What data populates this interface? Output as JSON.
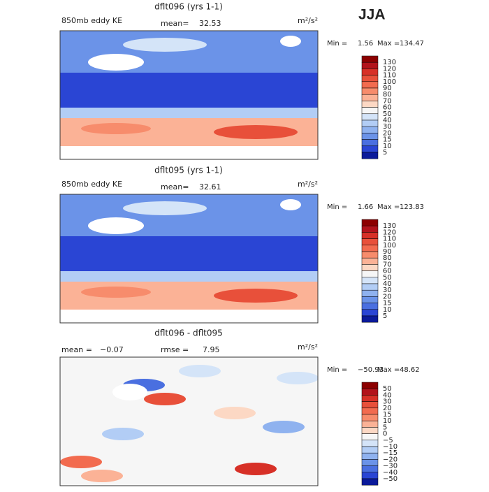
{
  "season": "JJA",
  "panels": [
    {
      "title": "dflt096 (yrs 1-1)",
      "variable": "850mb eddy KE",
      "mean_label": "mean=",
      "mean": "32.53",
      "units": "m²/s²",
      "min_label": "Min =",
      "min": "1.56",
      "max_label": "Max =",
      "max": "134.47",
      "colorbar": {
        "levels": [
          "130",
          "120",
          "110",
          "100",
          "90",
          "80",
          "70",
          "60",
          "50",
          "40",
          "30",
          "20",
          "15",
          "10",
          "5"
        ],
        "colors": [
          "#8c0000",
          "#b2131b",
          "#d73027",
          "#e8503a",
          "#f26b4f",
          "#f78c6c",
          "#fbb296",
          "#fcd8c4",
          "#f6f6f6",
          "#d4e4f8",
          "#b2cdf5",
          "#8fb2ef",
          "#6b93e8",
          "#4a6fe0",
          "#2a45d4",
          "#0b1a9a"
        ]
      }
    },
    {
      "title": "dflt095 (yrs 1-1)",
      "variable": "850mb eddy KE",
      "mean_label": "mean=",
      "mean": "32.61",
      "units": "m²/s²",
      "min_label": "Min =",
      "min": "1.66",
      "max_label": "Max =",
      "max": "123.83",
      "colorbar": {
        "levels": [
          "130",
          "120",
          "110",
          "100",
          "90",
          "80",
          "70",
          "60",
          "50",
          "40",
          "30",
          "20",
          "15",
          "10",
          "5"
        ],
        "colors": [
          "#8c0000",
          "#b2131b",
          "#d73027",
          "#e8503a",
          "#f26b4f",
          "#f78c6c",
          "#fbb296",
          "#fcd8c4",
          "#f6f6f6",
          "#d4e4f8",
          "#b2cdf5",
          "#8fb2ef",
          "#6b93e8",
          "#4a6fe0",
          "#2a45d4",
          "#0b1a9a"
        ]
      }
    },
    {
      "title": "dflt096 - dflt095",
      "mean_label": "mean =",
      "mean": "−0.07",
      "rmse_label": "rmse =",
      "rmse": "7.95",
      "units": "m²/s²",
      "min_label": "Min =",
      "min": "−50.93",
      "max_label": "Max =",
      "max": "48.62",
      "colorbar": {
        "levels": [
          "50",
          "40",
          "30",
          "20",
          "15",
          "10",
          "5",
          "0",
          "−5",
          "−10",
          "−15",
          "−20",
          "−30",
          "−40",
          "−50"
        ],
        "colors": [
          "#8c0000",
          "#b2131b",
          "#d73027",
          "#e8503a",
          "#f26b4f",
          "#f78c6c",
          "#fbb296",
          "#fcd8c4",
          "#f6f6f6",
          "#d4e4f8",
          "#b2cdf5",
          "#8fb2ef",
          "#6b93e8",
          "#4a6fe0",
          "#2a45d4",
          "#0b1a9a"
        ]
      }
    }
  ]
}
